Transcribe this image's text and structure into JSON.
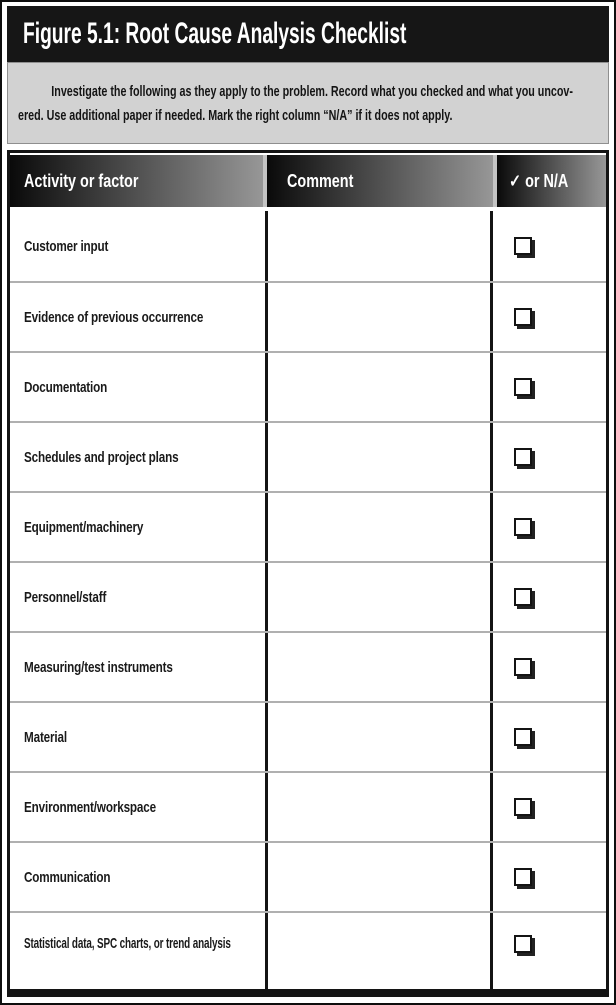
{
  "figure_title": "Figure 5.1: Root Cause Analysis Checklist",
  "instructions": {
    "line1": "Investigate the following as they apply to the problem. Record what you checked and what you uncov-",
    "line2": "ered. Use additional paper if needed. Mark the right column “N/A” if it does not apply."
  },
  "table": {
    "columns": [
      "Activity or factor",
      "Comment",
      "✓ or N/A"
    ],
    "rows": [
      {
        "activity": "Customer input",
        "comment": "",
        "checked": false
      },
      {
        "activity": "Evidence of previous occurrence",
        "comment": "",
        "checked": false
      },
      {
        "activity": "Documentation",
        "comment": "",
        "checked": false
      },
      {
        "activity": "Schedules and project plans",
        "comment": "",
        "checked": false
      },
      {
        "activity": "Equipment/machinery",
        "comment": "",
        "checked": false
      },
      {
        "activity": "Personnel/staff",
        "comment": "",
        "checked": false
      },
      {
        "activity": "Measuring/test instruments",
        "comment": "",
        "checked": false
      },
      {
        "activity": "Material",
        "comment": "",
        "checked": false
      },
      {
        "activity": "Environment/workspace",
        "comment": "",
        "checked": false
      },
      {
        "activity": "Communication",
        "comment": "",
        "checked": false
      },
      {
        "activity": "Statistical data, SPC charts, or trend analysis",
        "comment": "",
        "checked": false
      }
    ]
  },
  "colors": {
    "title_bar_bg": "#161616",
    "title_text": "#ffffff",
    "instruction_bg": "#d2d2d2",
    "header_gradient_start": "#0a0a0a",
    "header_gradient_end": "#979797",
    "header_text": "#ffffff",
    "row_divider": "#b0b0b0",
    "table_border": "#141414",
    "checkbox_shadow": "#222222"
  }
}
